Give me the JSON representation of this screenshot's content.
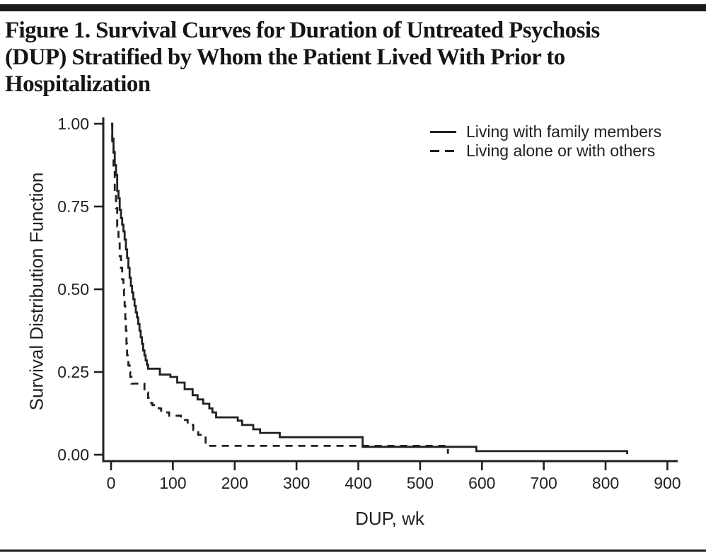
{
  "page": {
    "title_lines": [
      "Figure 1. Survival Curves for Duration of Untreated Psychosis",
      "(DUP) Stratified by Whom the Patient Lived With Prior to",
      "Hospitalization"
    ]
  },
  "legend": {
    "items": [
      {
        "label": "Living with family members",
        "style": "solid"
      },
      {
        "label": "Living alone or with others",
        "style": "dashed"
      }
    ]
  },
  "colors": {
    "ink": "#231f20",
    "rule": "#1b1b1b",
    "background": "#ffffff"
  },
  "chart_data": {
    "type": "line",
    "subtype": "kaplan-meier-step",
    "title": "",
    "xlabel": "DUP, wk",
    "ylabel": "Survival Distribution Function",
    "xlim": [
      0,
      900
    ],
    "ylim": [
      0.0,
      1.0
    ],
    "x_ticks": [
      0,
      100,
      200,
      300,
      400,
      500,
      600,
      700,
      800,
      900
    ],
    "y_tick_labels": [
      "1.00",
      "0.75",
      "0.50",
      "0.25",
      "0.00"
    ],
    "y_tick_values": [
      1.0,
      0.75,
      0.5,
      0.25,
      0.0
    ],
    "grid": false,
    "legend_position": "top-right",
    "series": [
      {
        "name": "Living with family members",
        "line": "solid",
        "step_points": [
          [
            0,
            1.0
          ],
          [
            2,
            0.955
          ],
          [
            4,
            0.915
          ],
          [
            6,
            0.875
          ],
          [
            8,
            0.845
          ],
          [
            10,
            0.797
          ],
          [
            12,
            0.775
          ],
          [
            14,
            0.74
          ],
          [
            16,
            0.715
          ],
          [
            18,
            0.695
          ],
          [
            20,
            0.675
          ],
          [
            22,
            0.65
          ],
          [
            24,
            0.62
          ],
          [
            26,
            0.595
          ],
          [
            28,
            0.565
          ],
          [
            30,
            0.535
          ],
          [
            32,
            0.51
          ],
          [
            34,
            0.49
          ],
          [
            36,
            0.47
          ],
          [
            38,
            0.45
          ],
          [
            40,
            0.43
          ],
          [
            42,
            0.415
          ],
          [
            44,
            0.395
          ],
          [
            46,
            0.375
          ],
          [
            48,
            0.355
          ],
          [
            50,
            0.335
          ],
          [
            52,
            0.315
          ],
          [
            54,
            0.3
          ],
          [
            56,
            0.285
          ],
          [
            58,
            0.272
          ],
          [
            60,
            0.26
          ],
          [
            79,
            0.242
          ],
          [
            96,
            0.235
          ],
          [
            107,
            0.218
          ],
          [
            119,
            0.198
          ],
          [
            132,
            0.18
          ],
          [
            140,
            0.167
          ],
          [
            149,
            0.154
          ],
          [
            159,
            0.14
          ],
          [
            164,
            0.128
          ],
          [
            170,
            0.113
          ],
          [
            205,
            0.103
          ],
          [
            212,
            0.09
          ],
          [
            230,
            0.077
          ],
          [
            241,
            0.066
          ],
          [
            273,
            0.053
          ],
          [
            407,
            0.024
          ],
          [
            591,
            0.011
          ],
          [
            835,
            0.002
          ]
        ]
      },
      {
        "name": "Living alone or with others",
        "line": "dashed",
        "step_points": [
          [
            0,
            1.0
          ],
          [
            2,
            0.93
          ],
          [
            4,
            0.865
          ],
          [
            6,
            0.8
          ],
          [
            8,
            0.745
          ],
          [
            10,
            0.69
          ],
          [
            12,
            0.645
          ],
          [
            14,
            0.6
          ],
          [
            16,
            0.565
          ],
          [
            18,
            0.53
          ],
          [
            20,
            0.5
          ],
          [
            21,
            0.475
          ],
          [
            22,
            0.45
          ],
          [
            23,
            0.41
          ],
          [
            24,
            0.375
          ],
          [
            25,
            0.335
          ],
          [
            26,
            0.3
          ],
          [
            27,
            0.285
          ],
          [
            28,
            0.27
          ],
          [
            30,
            0.25
          ],
          [
            31,
            0.235
          ],
          [
            33,
            0.215
          ],
          [
            54,
            0.188
          ],
          [
            60,
            0.172
          ],
          [
            65,
            0.156
          ],
          [
            67,
            0.15
          ],
          [
            77,
            0.14
          ],
          [
            81,
            0.128
          ],
          [
            94,
            0.118
          ],
          [
            113,
            0.105
          ],
          [
            124,
            0.09
          ],
          [
            133,
            0.075
          ],
          [
            141,
            0.06
          ],
          [
            153,
            0.027
          ],
          [
            545,
            0.003
          ]
        ]
      }
    ]
  }
}
